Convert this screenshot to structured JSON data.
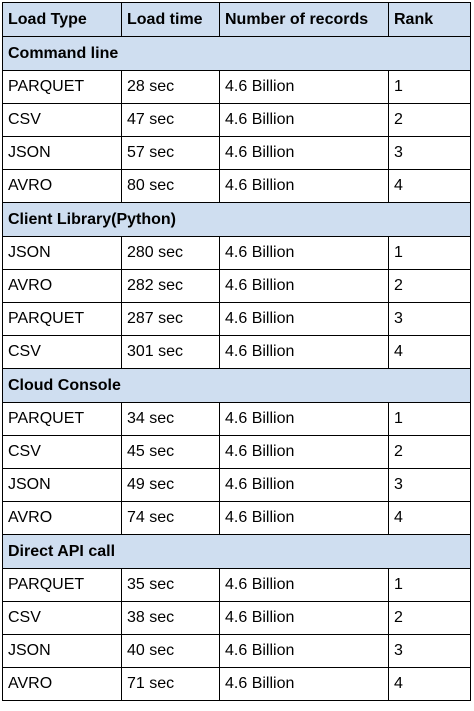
{
  "table": {
    "headers": [
      "Load Type",
      "Load time",
      "Number of records",
      "Rank"
    ],
    "sections": [
      {
        "title": "Command line",
        "rows": [
          [
            "PARQUET",
            "28 sec",
            "4.6 Billion",
            "1"
          ],
          [
            "CSV",
            "47 sec",
            "4.6 Billion",
            "2"
          ],
          [
            "JSON",
            "57 sec",
            "4.6 Billion",
            "3"
          ],
          [
            "AVRO",
            "80 sec",
            "4.6 Billion",
            "4"
          ]
        ]
      },
      {
        "title": "Client Library(Python)",
        "rows": [
          [
            "JSON",
            "280 sec",
            "4.6 Billion",
            "1"
          ],
          [
            "AVRO",
            "282 sec",
            "4.6 Billion",
            "2"
          ],
          [
            "PARQUET",
            "287 sec",
            "4.6 Billion",
            "3"
          ],
          [
            "CSV",
            "301 sec",
            "4.6 Billion",
            "4"
          ]
        ]
      },
      {
        "title": "Cloud Console",
        "rows": [
          [
            "PARQUET",
            "34 sec",
            "4.6 Billion",
            "1"
          ],
          [
            "CSV",
            "45 sec",
            "4.6 Billion",
            "2"
          ],
          [
            "JSON",
            "49 sec",
            "4.6 Billion",
            "3"
          ],
          [
            "AVRO",
            "74 sec",
            "4.6 Billion",
            "4"
          ]
        ]
      },
      {
        "title": "Direct API call",
        "rows": [
          [
            "PARQUET",
            "35 sec",
            "4.6 Billion",
            "1"
          ],
          [
            "CSV",
            "38 sec",
            "4.6 Billion",
            "2"
          ],
          [
            "JSON",
            "40 sec",
            "4.6 Billion",
            "3"
          ],
          [
            "AVRO",
            "71 sec",
            "4.6 Billion",
            "4"
          ]
        ]
      }
    ]
  },
  "colors": {
    "header_background": "#cfdef0",
    "border": "#000000",
    "text": "#000000"
  }
}
